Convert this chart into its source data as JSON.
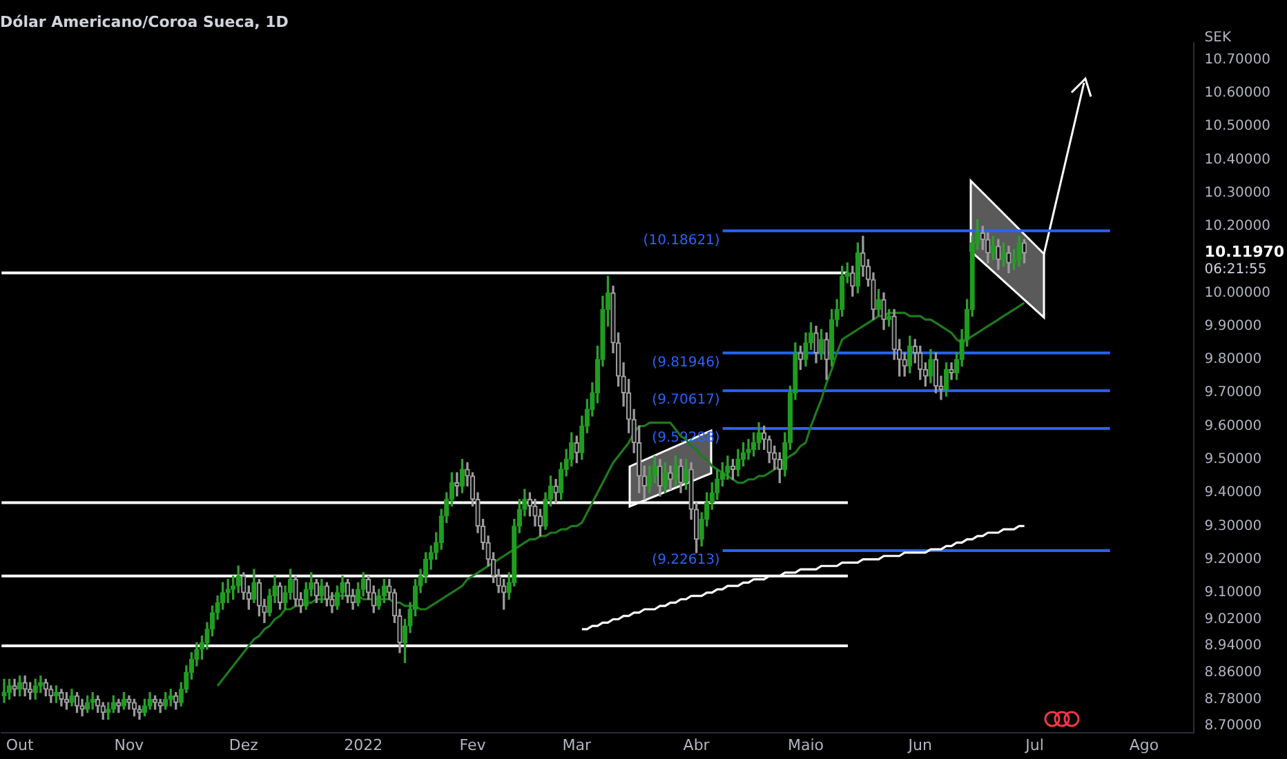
{
  "chart_data": {
    "type": "candlestick",
    "title": "Dólar Americano/Coroa Sueca, 1D",
    "ylabel": "SEK",
    "categories": [
      null,
      null,
      null,
      "Out",
      null,
      null,
      null,
      null,
      null,
      null,
      null,
      null,
      null,
      null,
      null,
      null,
      null,
      null,
      null,
      null,
      null,
      null,
      null,
      null,
      "Nov",
      null,
      null,
      null,
      null,
      null,
      null,
      null,
      null,
      null,
      null,
      null,
      null,
      null,
      null,
      null,
      null,
      null,
      null,
      null,
      null,
      null,
      "Dez",
      null,
      null,
      null,
      null,
      null,
      null,
      null,
      null,
      null,
      null,
      null,
      null,
      null,
      null,
      null,
      null,
      null,
      null,
      null,
      null,
      null,
      null,
      "2022",
      null,
      null,
      null,
      null,
      null,
      null,
      null,
      null,
      null,
      null,
      null,
      null,
      null,
      null,
      null,
      null,
      null,
      null,
      null,
      null,
      "Fev",
      null,
      null,
      null,
      null,
      null,
      null,
      null,
      null,
      null,
      null,
      null,
      null,
      null,
      null,
      null,
      null,
      null,
      null,
      null,
      "Mar",
      null,
      null,
      null,
      null,
      null,
      null,
      null,
      null,
      null,
      null,
      null,
      null,
      null,
      null,
      null,
      null,
      null,
      null,
      null,
      null,
      null,
      null,
      "Abr",
      null,
      null,
      null,
      null,
      null,
      null,
      null,
      null,
      null,
      null,
      null,
      null,
      null,
      null,
      null,
      null,
      null,
      null,
      null,
      null,
      "Maio",
      null,
      null,
      null,
      null,
      null,
      null,
      null,
      null,
      null,
      null,
      null,
      null,
      null,
      null,
      null,
      null,
      null,
      null,
      null,
      null,
      null,
      "Jun",
      null,
      null,
      null,
      null,
      null,
      null,
      null,
      null,
      null,
      null,
      null,
      null,
      null,
      null,
      null,
      null,
      null,
      null,
      null,
      null,
      null,
      "Jul",
      null,
      null,
      null,
      null,
      null,
      null,
      null,
      null,
      null,
      null,
      null,
      null,
      null,
      null,
      null,
      null,
      null,
      null,
      null,
      null,
      "Ago",
      null,
      null,
      null,
      null,
      null,
      null,
      null,
      null,
      null
    ],
    "ohlc": [
      [
        8.79,
        8.84,
        8.77,
        8.8
      ],
      [
        8.8,
        8.84,
        8.78,
        8.82
      ],
      [
        8.82,
        8.84,
        8.79,
        8.81
      ],
      [
        8.81,
        8.85,
        8.79,
        8.83
      ],
      [
        8.83,
        8.85,
        8.79,
        8.81
      ],
      [
        8.81,
        8.83,
        8.78,
        8.8
      ],
      [
        8.8,
        8.84,
        8.78,
        8.82
      ],
      [
        8.82,
        8.85,
        8.8,
        8.83
      ],
      [
        8.83,
        8.84,
        8.79,
        8.81
      ],
      [
        8.81,
        8.82,
        8.77,
        8.79
      ],
      [
        8.79,
        8.82,
        8.77,
        8.8
      ],
      [
        8.8,
        8.81,
        8.76,
        8.78
      ],
      [
        8.78,
        8.8,
        8.75,
        8.77
      ],
      [
        8.77,
        8.81,
        8.76,
        8.79
      ],
      [
        8.79,
        8.8,
        8.74,
        8.76
      ],
      [
        8.76,
        8.78,
        8.73,
        8.75
      ],
      [
        8.75,
        8.79,
        8.74,
        8.77
      ],
      [
        8.77,
        8.8,
        8.75,
        8.78
      ],
      [
        8.78,
        8.79,
        8.74,
        8.76
      ],
      [
        8.76,
        8.77,
        8.72,
        8.74
      ],
      [
        8.74,
        8.77,
        8.72,
        8.75
      ],
      [
        8.75,
        8.79,
        8.74,
        8.77
      ],
      [
        8.77,
        8.78,
        8.74,
        8.76
      ],
      [
        8.76,
        8.8,
        8.75,
        8.78
      ],
      [
        8.78,
        8.79,
        8.75,
        8.77
      ],
      [
        8.77,
        8.78,
        8.73,
        8.75
      ],
      [
        8.75,
        8.76,
        8.72,
        8.74
      ],
      [
        8.74,
        8.78,
        8.73,
        8.76
      ],
      [
        8.76,
        8.8,
        8.75,
        8.78
      ],
      [
        8.78,
        8.79,
        8.75,
        8.77
      ],
      [
        8.77,
        8.78,
        8.74,
        8.76
      ],
      [
        8.76,
        8.8,
        8.75,
        8.78
      ],
      [
        8.78,
        8.81,
        8.76,
        8.79
      ],
      [
        8.79,
        8.8,
        8.75,
        8.77
      ],
      [
        8.77,
        8.83,
        8.76,
        8.81
      ],
      [
        8.81,
        8.88,
        8.8,
        8.86
      ],
      [
        8.86,
        8.92,
        8.84,
        8.9
      ],
      [
        8.9,
        8.95,
        8.88,
        8.93
      ],
      [
        8.93,
        8.97,
        8.9,
        8.95
      ],
      [
        8.95,
        9.01,
        8.93,
        8.99
      ],
      [
        8.99,
        9.06,
        8.97,
        9.04
      ],
      [
        9.04,
        9.09,
        9.02,
        9.07
      ],
      [
        9.07,
        9.13,
        9.05,
        9.1
      ],
      [
        9.1,
        9.14,
        9.07,
        9.11
      ],
      [
        9.11,
        9.15,
        9.08,
        9.12
      ],
      [
        9.12,
        9.18,
        9.1,
        9.15
      ],
      [
        9.15,
        9.16,
        9.08,
        9.1
      ],
      [
        9.1,
        9.12,
        9.05,
        9.08
      ],
      [
        9.08,
        9.17,
        9.07,
        9.13
      ],
      [
        9.13,
        9.14,
        9.03,
        9.06
      ],
      [
        9.06,
        9.08,
        9.01,
        9.04
      ],
      [
        9.04,
        9.11,
        9.03,
        9.09
      ],
      [
        9.09,
        9.15,
        9.07,
        9.12
      ],
      [
        9.12,
        9.13,
        9.05,
        9.07
      ],
      [
        9.07,
        9.12,
        9.05,
        9.1
      ],
      [
        9.1,
        9.17,
        9.08,
        9.14
      ],
      [
        9.14,
        9.15,
        9.06,
        9.08
      ],
      [
        9.08,
        9.1,
        9.04,
        9.06
      ],
      [
        9.06,
        9.13,
        9.05,
        9.11
      ],
      [
        9.11,
        9.16,
        9.09,
        9.13
      ],
      [
        9.13,
        9.14,
        9.07,
        9.09
      ],
      [
        9.09,
        9.14,
        9.07,
        9.12
      ],
      [
        9.12,
        9.13,
        9.06,
        9.08
      ],
      [
        9.08,
        9.1,
        9.04,
        9.06
      ],
      [
        9.06,
        9.12,
        9.05,
        9.1
      ],
      [
        9.1,
        9.15,
        9.08,
        9.13
      ],
      [
        9.13,
        9.14,
        9.07,
        9.09
      ],
      [
        9.09,
        9.11,
        9.05,
        9.07
      ],
      [
        9.07,
        9.13,
        9.06,
        9.11
      ],
      [
        9.11,
        9.16,
        9.09,
        9.14
      ],
      [
        9.14,
        9.15,
        9.08,
        9.1
      ],
      [
        9.1,
        9.12,
        9.04,
        9.06
      ],
      [
        9.06,
        9.11,
        9.05,
        9.09
      ],
      [
        9.09,
        9.14,
        9.07,
        9.12
      ],
      [
        9.12,
        9.14,
        9.08,
        9.1
      ],
      [
        9.1,
        9.11,
        9.01,
        9.03
      ],
      [
        9.03,
        9.05,
        8.92,
        8.95
      ],
      [
        8.95,
        9.02,
        8.89,
        9.0
      ],
      [
        9.0,
        9.07,
        8.98,
        9.05
      ],
      [
        9.05,
        9.14,
        9.03,
        9.12
      ],
      [
        9.12,
        9.17,
        9.1,
        9.15
      ],
      [
        9.15,
        9.22,
        9.13,
        9.2
      ],
      [
        9.2,
        9.24,
        9.17,
        9.22
      ],
      [
        9.22,
        9.28,
        9.2,
        9.25
      ],
      [
        9.25,
        9.35,
        9.23,
        9.33
      ],
      [
        9.33,
        9.4,
        9.31,
        9.38
      ],
      [
        9.38,
        9.46,
        9.36,
        9.43
      ],
      [
        9.43,
        9.46,
        9.39,
        9.42
      ],
      [
        9.42,
        9.5,
        9.4,
        9.47
      ],
      [
        9.47,
        9.49,
        9.42,
        9.45
      ],
      [
        9.45,
        9.46,
        9.36,
        9.38
      ],
      [
        9.38,
        9.4,
        9.28,
        9.3
      ],
      [
        9.3,
        9.32,
        9.23,
        9.25
      ],
      [
        9.25,
        9.27,
        9.18,
        9.2
      ],
      [
        9.2,
        9.22,
        9.13,
        9.15
      ],
      [
        9.15,
        9.17,
        9.1,
        9.12
      ],
      [
        9.12,
        9.14,
        9.05,
        9.1
      ],
      [
        9.1,
        9.16,
        9.08,
        9.13
      ],
      [
        9.13,
        9.32,
        9.12,
        9.3
      ],
      [
        9.3,
        9.38,
        9.28,
        9.35
      ],
      [
        9.35,
        9.41,
        9.33,
        9.38
      ],
      [
        9.38,
        9.4,
        9.33,
        9.36
      ],
      [
        9.36,
        9.38,
        9.3,
        9.33
      ],
      [
        9.33,
        9.35,
        9.27,
        9.3
      ],
      [
        9.3,
        9.4,
        9.29,
        9.38
      ],
      [
        9.38,
        9.45,
        9.36,
        9.42
      ],
      [
        9.42,
        9.44,
        9.37,
        9.4
      ],
      [
        9.4,
        9.49,
        9.38,
        9.47
      ],
      [
        9.47,
        9.53,
        9.45,
        9.5
      ],
      [
        9.5,
        9.58,
        9.48,
        9.55
      ],
      [
        9.55,
        9.57,
        9.49,
        9.52
      ],
      [
        9.52,
        9.63,
        9.5,
        9.6
      ],
      [
        9.6,
        9.68,
        9.58,
        9.65
      ],
      [
        9.65,
        9.73,
        9.63,
        9.7
      ],
      [
        9.7,
        9.84,
        9.67,
        9.8
      ],
      [
        9.8,
        9.99,
        9.78,
        9.95
      ],
      [
        9.95,
        10.05,
        9.9,
        10.0
      ],
      [
        10.0,
        10.02,
        9.82,
        9.85
      ],
      [
        9.85,
        9.88,
        9.72,
        9.75
      ],
      [
        9.75,
        9.79,
        9.66,
        9.7
      ],
      [
        9.7,
        9.74,
        9.58,
        9.62
      ],
      [
        9.62,
        9.65,
        9.52,
        9.55
      ],
      [
        9.55,
        9.6,
        9.4,
        9.45
      ],
      [
        9.45,
        9.48,
        9.38,
        9.42
      ],
      [
        9.42,
        9.48,
        9.4,
        9.45
      ],
      [
        9.45,
        9.51,
        9.43,
        9.48
      ],
      [
        9.48,
        9.5,
        9.39,
        9.42
      ],
      [
        9.42,
        9.49,
        9.4,
        9.46
      ],
      [
        9.46,
        9.48,
        9.41,
        9.44
      ],
      [
        9.44,
        9.51,
        9.42,
        9.48
      ],
      [
        9.48,
        9.5,
        9.4,
        9.43
      ],
      [
        9.43,
        9.5,
        9.41,
        9.47
      ],
      [
        9.47,
        9.49,
        9.32,
        9.35
      ],
      [
        9.35,
        9.37,
        9.22,
        9.26
      ],
      [
        9.26,
        9.34,
        9.24,
        9.32
      ],
      [
        9.32,
        9.4,
        9.3,
        9.37
      ],
      [
        9.37,
        9.43,
        9.35,
        9.4
      ],
      [
        9.4,
        9.47,
        9.38,
        9.44
      ],
      [
        9.44,
        9.49,
        9.42,
        9.46
      ],
      [
        9.46,
        9.51,
        9.44,
        9.48
      ],
      [
        9.48,
        9.5,
        9.44,
        9.47
      ],
      [
        9.47,
        9.53,
        9.45,
        9.5
      ],
      [
        9.5,
        9.55,
        9.48,
        9.52
      ],
      [
        9.52,
        9.56,
        9.5,
        9.53
      ],
      [
        9.53,
        9.58,
        9.51,
        9.55
      ],
      [
        9.55,
        9.61,
        9.53,
        9.58
      ],
      [
        9.58,
        9.6,
        9.53,
        9.56
      ],
      [
        9.56,
        9.57,
        9.49,
        9.52
      ],
      [
        9.52,
        9.54,
        9.47,
        9.5
      ],
      [
        9.5,
        9.52,
        9.43,
        9.47
      ],
      [
        9.47,
        9.58,
        9.45,
        9.55
      ],
      [
        9.55,
        9.72,
        9.53,
        9.7
      ],
      [
        9.7,
        9.85,
        9.68,
        9.82
      ],
      [
        9.82,
        9.84,
        9.77,
        9.8
      ],
      [
        9.8,
        9.88,
        9.78,
        9.85
      ],
      [
        9.85,
        9.91,
        9.83,
        9.88
      ],
      [
        9.88,
        9.9,
        9.79,
        9.82
      ],
      [
        9.82,
        9.89,
        9.8,
        9.86
      ],
      [
        9.86,
        9.88,
        9.74,
        9.8
      ],
      [
        9.8,
        9.95,
        9.78,
        9.92
      ],
      [
        9.92,
        9.98,
        9.9,
        9.95
      ],
      [
        9.95,
        10.08,
        9.93,
        10.05
      ],
      [
        10.05,
        10.09,
        10.03,
        10.06
      ],
      [
        10.06,
        10.08,
        9.99,
        10.02
      ],
      [
        10.02,
        10.15,
        10.0,
        10.12
      ],
      [
        10.12,
        10.17,
        10.05,
        10.08
      ],
      [
        10.08,
        10.1,
        10.02,
        10.04
      ],
      [
        10.04,
        10.06,
        9.92,
        9.95
      ],
      [
        9.95,
        10.01,
        9.93,
        9.98
      ],
      [
        9.98,
        10.0,
        9.89,
        9.92
      ],
      [
        9.92,
        9.95,
        9.9,
        9.93
      ],
      [
        9.93,
        9.95,
        9.8,
        9.83
      ],
      [
        9.83,
        9.86,
        9.75,
        9.8
      ],
      [
        9.8,
        9.82,
        9.75,
        9.78
      ],
      [
        9.78,
        9.87,
        9.76,
        9.84
      ],
      [
        9.84,
        9.86,
        9.79,
        9.82
      ],
      [
        9.82,
        9.84,
        9.74,
        9.77
      ],
      [
        9.77,
        9.79,
        9.72,
        9.75
      ],
      [
        9.75,
        9.83,
        9.73,
        9.8
      ],
      [
        9.8,
        9.82,
        9.7,
        9.72
      ],
      [
        9.72,
        9.75,
        9.68,
        9.71
      ],
      [
        9.71,
        9.79,
        9.69,
        9.77
      ],
      [
        9.77,
        9.79,
        9.74,
        9.76
      ],
      [
        9.76,
        9.82,
        9.74,
        9.8
      ],
      [
        9.8,
        9.89,
        9.78,
        9.86
      ],
      [
        9.86,
        9.98,
        9.84,
        9.95
      ],
      [
        9.95,
        10.17,
        9.93,
        10.15
      ],
      [
        10.15,
        10.22,
        10.13,
        10.18
      ],
      [
        10.18,
        10.2,
        10.13,
        10.16
      ],
      [
        10.16,
        10.18,
        10.09,
        10.12
      ],
      [
        10.12,
        10.17,
        10.1,
        10.14
      ],
      [
        10.14,
        10.16,
        10.07,
        10.1
      ],
      [
        10.1,
        10.15,
        10.08,
        10.12
      ],
      [
        10.12,
        10.14,
        10.06,
        10.09
      ],
      [
        10.09,
        10.13,
        10.07,
        10.1
      ],
      [
        10.1,
        10.17,
        10.08,
        10.15
      ],
      [
        10.15,
        10.16,
        10.09,
        10.1197
      ],
      null,
      null,
      null,
      null,
      null,
      null,
      null,
      null,
      null,
      null,
      null,
      null,
      null,
      null,
      null,
      null,
      null,
      null,
      null,
      null,
      null,
      null,
      null,
      null,
      null,
      null,
      null,
      null,
      null,
      null,
      null,
      null
    ],
    "series": [
      {
        "type": "line",
        "color": "#1e7b1e",
        "values": [
          null,
          null,
          null,
          null,
          null,
          null,
          null,
          null,
          null,
          null,
          null,
          null,
          null,
          null,
          null,
          null,
          null,
          null,
          null,
          null,
          null,
          null,
          null,
          null,
          null,
          null,
          null,
          null,
          null,
          null,
          null,
          null,
          null,
          null,
          null,
          null,
          null,
          null,
          null,
          null,
          null,
          8.82,
          8.84,
          8.86,
          8.88,
          8.9,
          8.92,
          8.94,
          8.96,
          8.97,
          8.99,
          9.0,
          9.02,
          9.03,
          9.05,
          9.05,
          9.06,
          9.06,
          9.07,
          9.07,
          9.08,
          9.08,
          9.08,
          9.09,
          9.09,
          9.09,
          9.09,
          9.09,
          9.09,
          9.08,
          9.08,
          9.08,
          9.08,
          9.08,
          9.08,
          9.07,
          9.07,
          9.06,
          9.06,
          9.06,
          9.05,
          9.05,
          9.06,
          9.07,
          9.08,
          9.09,
          9.1,
          9.11,
          9.12,
          9.14,
          9.15,
          9.16,
          9.17,
          9.18,
          9.19,
          9.2,
          9.21,
          9.22,
          9.23,
          9.24,
          9.25,
          9.26,
          9.26,
          9.27,
          9.27,
          9.28,
          9.28,
          9.29,
          9.29,
          9.3,
          9.3,
          9.31,
          9.34,
          9.37,
          9.4,
          9.43,
          9.46,
          9.49,
          9.51,
          9.53,
          9.55,
          9.58,
          9.6,
          9.6,
          9.61,
          9.61,
          9.61,
          9.61,
          9.61,
          9.59,
          9.57,
          9.56,
          9.54,
          9.53,
          9.51,
          9.5,
          9.48,
          9.47,
          9.46,
          9.45,
          9.44,
          9.43,
          9.43,
          9.44,
          9.44,
          9.45,
          9.45,
          9.46,
          9.47,
          9.48,
          9.5,
          9.51,
          9.52,
          9.54,
          9.55,
          9.6,
          9.64,
          9.68,
          9.73,
          9.77,
          9.82,
          9.86,
          9.87,
          9.88,
          9.89,
          9.9,
          9.91,
          9.92,
          9.93,
          9.93,
          9.94,
          9.94,
          9.94,
          9.94,
          9.93,
          9.93,
          9.93,
          9.92,
          9.92,
          9.91,
          9.9,
          9.89,
          9.88,
          9.86,
          9.85,
          9.86,
          9.87,
          9.88,
          9.89,
          9.9,
          9.91,
          9.92,
          9.93,
          9.94,
          9.95,
          9.96,
          9.97,
          null,
          null,
          null,
          null,
          null,
          null,
          null,
          null,
          null,
          null,
          null,
          null,
          null,
          null,
          null,
          null,
          null,
          null,
          null,
          null,
          null,
          null,
          null,
          null,
          null,
          null,
          null,
          null,
          null,
          null,
          null,
          null
        ]
      },
      {
        "type": "line",
        "color": "#ffffff",
        "values": [
          null,
          null,
          null,
          null,
          null,
          null,
          null,
          null,
          null,
          null,
          null,
          null,
          null,
          null,
          null,
          null,
          null,
          null,
          null,
          null,
          null,
          null,
          null,
          null,
          null,
          null,
          null,
          null,
          null,
          null,
          null,
          null,
          null,
          null,
          null,
          null,
          null,
          null,
          null,
          null,
          null,
          null,
          null,
          null,
          null,
          null,
          null,
          null,
          null,
          null,
          null,
          null,
          null,
          null,
          null,
          null,
          null,
          null,
          null,
          null,
          null,
          null,
          null,
          null,
          null,
          null,
          null,
          null,
          null,
          null,
          null,
          null,
          null,
          null,
          null,
          null,
          null,
          null,
          null,
          null,
          null,
          null,
          null,
          null,
          null,
          null,
          null,
          null,
          null,
          null,
          null,
          null,
          null,
          null,
          null,
          null,
          null,
          null,
          null,
          null,
          null,
          null,
          null,
          null,
          null,
          null,
          null,
          null,
          null,
          null,
          null,
          8.99,
          8.99,
          9.0,
          9.0,
          9.01,
          9.01,
          9.02,
          9.02,
          9.03,
          9.03,
          9.04,
          9.04,
          9.05,
          9.05,
          9.05,
          9.06,
          9.06,
          9.07,
          9.07,
          9.08,
          9.08,
          9.09,
          9.09,
          9.09,
          9.1,
          9.1,
          9.11,
          9.11,
          9.12,
          9.12,
          9.12,
          9.13,
          9.13,
          9.14,
          9.14,
          9.14,
          9.15,
          9.15,
          9.15,
          9.16,
          9.16,
          9.16,
          9.17,
          9.17,
          9.17,
          9.17,
          9.18,
          9.18,
          9.18,
          9.18,
          9.19,
          9.19,
          9.19,
          9.19,
          9.2,
          9.2,
          9.2,
          9.2,
          9.21,
          9.21,
          9.21,
          9.21,
          9.22,
          9.22,
          9.22,
          9.22,
          9.22,
          9.23,
          9.23,
          9.23,
          9.24,
          9.24,
          9.25,
          9.25,
          9.26,
          9.26,
          9.27,
          9.27,
          9.28,
          9.28,
          9.28,
          9.29,
          9.29,
          9.29,
          9.3,
          9.3,
          null,
          null,
          null,
          null,
          null,
          null,
          null,
          null,
          null,
          null,
          null,
          null,
          null,
          null,
          null,
          null,
          null,
          null,
          null,
          null,
          null,
          null,
          null,
          null,
          null,
          null,
          null,
          null,
          null,
          null,
          null,
          null
        ]
      }
    ],
    "ylim": [
      8.68,
      10.75
    ],
    "yticks": [
      {
        "value": 10.7,
        "label": "10.70000"
      },
      {
        "value": 10.6,
        "label": "10.60000"
      },
      {
        "value": 10.5,
        "label": "10.50000"
      },
      {
        "value": 10.4,
        "label": "10.40000"
      },
      {
        "value": 10.3,
        "label": "10.30000"
      },
      {
        "value": 10.2,
        "label": "10.20000"
      },
      {
        "value": 10.0,
        "label": "10.00000"
      },
      {
        "value": 9.9,
        "label": "9.90000"
      },
      {
        "value": 9.8,
        "label": "9.80000"
      },
      {
        "value": 9.7,
        "label": "9.70000"
      },
      {
        "value": 9.6,
        "label": "9.60000"
      },
      {
        "value": 9.5,
        "label": "9.50000"
      },
      {
        "value": 9.4,
        "label": "9.40000"
      },
      {
        "value": 9.3,
        "label": "9.30000"
      },
      {
        "value": 9.2,
        "label": "9.20000"
      },
      {
        "value": 9.1,
        "label": "9.10000"
      },
      {
        "value": 9.02,
        "label": "9.02000"
      },
      {
        "value": 8.94,
        "label": "8.94000"
      },
      {
        "value": 8.86,
        "label": "8.86000"
      },
      {
        "value": 8.78,
        "label": "8.78000"
      },
      {
        "value": 8.7,
        "label": "8.70000"
      }
    ],
    "ref_lines": [
      {
        "axis": "y",
        "value": 10.06,
        "color": "#ffffff"
      },
      {
        "axis": "y",
        "value": 9.37,
        "color": "#ffffff"
      },
      {
        "axis": "y",
        "value": 9.15,
        "color": "#ffffff"
      },
      {
        "axis": "y",
        "value": 8.94,
        "color": "#ffffff"
      },
      {
        "axis": "y",
        "value": 10.18621,
        "label": "(10.18621)",
        "color": "#2962ff"
      },
      {
        "axis": "y",
        "value": 9.81946,
        "label": "(9.81946)",
        "color": "#2962ff"
      },
      {
        "axis": "y",
        "value": 9.70617,
        "label": "(9.70617)",
        "color": "#2962ff"
      },
      {
        "axis": "y",
        "value": 9.59288,
        "label": "(9.59288)",
        "color": "#2962ff"
      },
      {
        "axis": "y",
        "value": 9.22613,
        "label": "(9.22613)",
        "color": "#2962ff"
      }
    ],
    "annotations": [
      "10.11970",
      "06:21:55"
    ],
    "legend": false
  }
}
